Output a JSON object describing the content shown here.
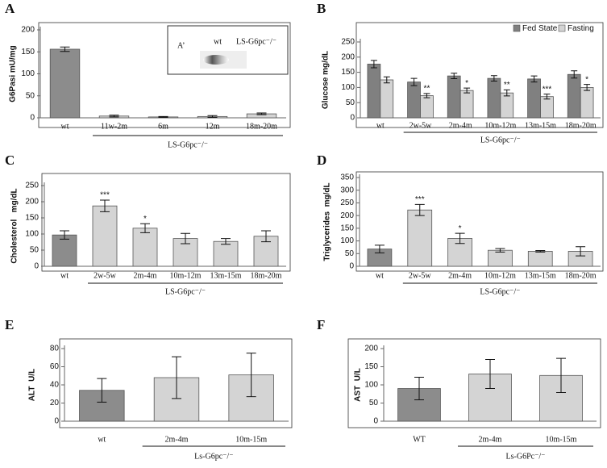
{
  "chart_data": [
    {
      "type": "bar",
      "panel_label": "A",
      "y_label": "G6Pasi mU/mg",
      "categories": [
        "wt",
        "11w-2m",
        "6m",
        "12m",
        "18m-20m"
      ],
      "values": [
        156,
        4,
        2,
        3,
        9
      ],
      "errors": [
        5,
        2,
        1,
        2,
        2
      ],
      "colors": [
        "#8c8c8c",
        "#d4d4d4",
        "#d4d4d4",
        "#d4d4d4",
        "#d4d4d4"
      ],
      "group_label": "LS-G6pc⁻/⁻",
      "ylim": [
        0,
        200
      ],
      "yticks": [
        0,
        50,
        100,
        150,
        200
      ],
      "inset": {
        "label": "A’",
        "lanes": [
          "wt",
          "LS-G6pc⁻/⁻"
        ]
      }
    },
    {
      "type": "grouped_bar",
      "panel_label": "B",
      "y_label": "Glucose mg/dL",
      "categories": [
        "wt",
        "2w-5w",
        "2m-4m",
        "10m-12m",
        "13m-15m",
        "18m-20m"
      ],
      "series": [
        {
          "name": "Fed State",
          "color": "#808080",
          "values": [
            177,
            118,
            138,
            130,
            128,
            143
          ],
          "errors": [
            12,
            12,
            9,
            9,
            10,
            12
          ]
        },
        {
          "name": "Fasting",
          "color": "#d4d4d4",
          "values": [
            125,
            73,
            90,
            82,
            70,
            100
          ],
          "errors": [
            10,
            7,
            8,
            10,
            8,
            10
          ],
          "annotations": [
            null,
            "**",
            "*",
            "**",
            "***",
            "*"
          ]
        }
      ],
      "group_label": "LS-G6pc⁻/⁻",
      "legend": "top-right",
      "ylim": [
        0,
        250
      ],
      "yticks": [
        0,
        50,
        100,
        150,
        200,
        250
      ]
    },
    {
      "type": "bar",
      "panel_label": "C",
      "y_label": "Cholesterol   mg/dL",
      "categories": [
        "wt",
        "2w-5w",
        "2m-4m",
        "10m-12m",
        "13m-15m",
        "18m-20m"
      ],
      "values": [
        97,
        187,
        118,
        86,
        77,
        93
      ],
      "errors": [
        13,
        18,
        14,
        16,
        9,
        17
      ],
      "annotations": [
        null,
        "***",
        "*",
        null,
        null,
        null
      ],
      "colors": [
        "#8c8c8c",
        "#d4d4d4",
        "#d4d4d4",
        "#d4d4d4",
        "#d4d4d4",
        "#d4d4d4"
      ],
      "group_label": "LS-G6pc⁻/⁻",
      "ylim": [
        0,
        250
      ],
      "yticks": [
        0,
        50,
        100,
        150,
        200,
        250
      ]
    },
    {
      "type": "bar",
      "panel_label": "D",
      "y_label": "Triglycerides  mg/dL",
      "categories": [
        "wt",
        "2w-5w",
        "2m-4m",
        "10m-12m",
        "13m-15m",
        "18m-20m"
      ],
      "values": [
        68,
        222,
        110,
        63,
        59,
        59
      ],
      "errors": [
        15,
        22,
        20,
        7,
        3,
        18
      ],
      "annotations": [
        null,
        "***",
        "*",
        null,
        null,
        null
      ],
      "colors": [
        "#8c8c8c",
        "#d4d4d4",
        "#d4d4d4",
        "#d4d4d4",
        "#d4d4d4",
        "#d4d4d4"
      ],
      "group_label": "LS-G6pc⁻/⁻",
      "ylim": [
        0,
        350
      ],
      "yticks": [
        0,
        50,
        100,
        150,
        200,
        250,
        300,
        350
      ]
    },
    {
      "type": "bar",
      "panel_label": "E",
      "y_label": "ALT  U/L",
      "categories": [
        "wt",
        "2m-4m",
        "10m-15m"
      ],
      "values": [
        34,
        48,
        51
      ],
      "errors": [
        13,
        23,
        24
      ],
      "colors": [
        "#8c8c8c",
        "#d4d4d4",
        "#d4d4d4"
      ],
      "group_label": "Ls-G6pc⁻/⁻",
      "ylim": [
        0,
        80
      ],
      "yticks": [
        0,
        20,
        40,
        60,
        80
      ]
    },
    {
      "type": "bar",
      "panel_label": "F",
      "y_label": "AST  U/L",
      "categories": [
        "WT",
        "2m-4m",
        "10m-15m"
      ],
      "values": [
        90,
        130,
        126
      ],
      "errors": [
        31,
        40,
        47
      ],
      "colors": [
        "#8c8c8c",
        "#d4d4d4",
        "#d4d4d4"
      ],
      "group_label": "Ls-G6Pc⁻/⁻",
      "ylim": [
        0,
        200
      ],
      "yticks": [
        0,
        50,
        100,
        150,
        200
      ]
    }
  ]
}
